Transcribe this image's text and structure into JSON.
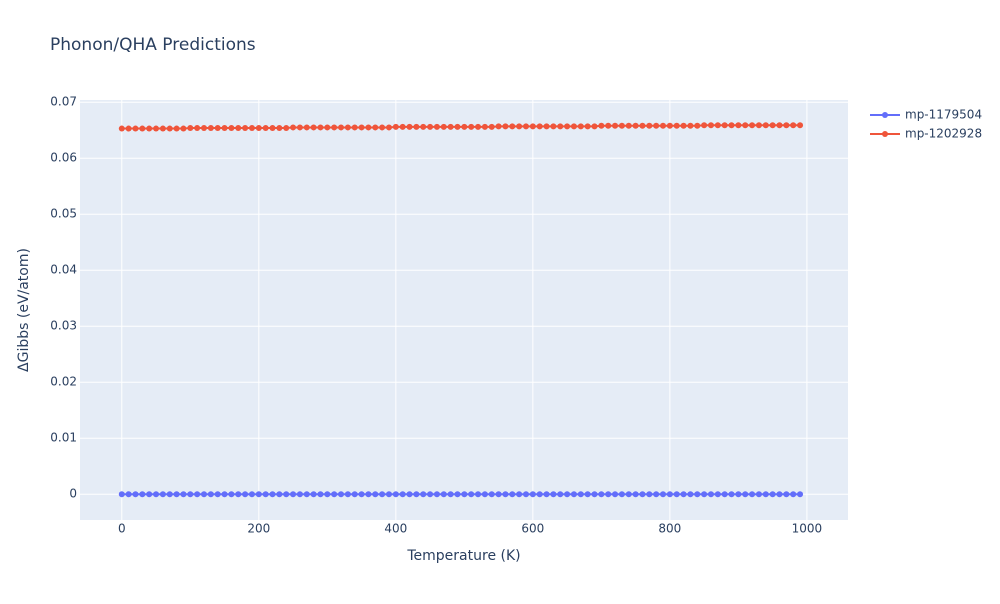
{
  "chart_data": {
    "type": "line",
    "title": "Phonon/QHA Predictions",
    "x_label": "Temperature (K)",
    "y_label": "ΔGibbs (eV/atom)",
    "x": [
      0,
      10,
      20,
      30,
      40,
      50,
      60,
      70,
      80,
      90,
      100,
      110,
      120,
      130,
      140,
      150,
      160,
      170,
      180,
      190,
      200,
      210,
      220,
      230,
      240,
      250,
      260,
      270,
      280,
      290,
      300,
      310,
      320,
      330,
      340,
      350,
      360,
      370,
      380,
      390,
      400,
      410,
      420,
      430,
      440,
      450,
      460,
      470,
      480,
      490,
      500,
      510,
      520,
      530,
      540,
      550,
      560,
      570,
      580,
      590,
      600,
      610,
      620,
      630,
      640,
      650,
      660,
      670,
      680,
      690,
      700,
      710,
      720,
      730,
      740,
      750,
      760,
      770,
      780,
      790,
      800,
      810,
      820,
      830,
      840,
      850,
      860,
      870,
      880,
      890,
      900,
      910,
      920,
      930,
      940,
      950,
      960,
      970,
      980,
      990
    ],
    "series": [
      {
        "name": "mp-1179504",
        "color": "#636efa",
        "values": [
          0,
          0,
          0,
          0,
          0,
          0,
          0,
          0,
          0,
          0,
          0,
          0,
          0,
          0,
          0,
          0,
          0,
          0,
          0,
          0,
          0,
          0,
          0,
          0,
          0,
          0,
          0,
          0,
          0,
          0,
          0,
          0,
          0,
          0,
          0,
          0,
          0,
          0,
          0,
          0,
          0,
          0,
          0,
          0,
          0,
          0,
          0,
          0,
          0,
          0,
          0,
          0,
          0,
          0,
          0,
          0,
          0,
          0,
          0,
          0,
          0,
          0,
          0,
          0,
          0,
          0,
          0,
          0,
          0,
          0,
          0,
          0,
          0,
          0,
          0,
          0,
          0,
          0,
          0,
          0,
          0,
          0,
          0,
          0,
          0,
          0,
          0,
          0,
          0,
          0,
          0,
          0,
          0,
          0,
          0,
          0,
          0,
          0,
          0,
          0
        ]
      },
      {
        "name": "mp-1202928",
        "color": "#ef553b",
        "values": [
          0.0653,
          0.0653,
          0.0653,
          0.0653,
          0.0653,
          0.0653,
          0.0653,
          0.0653,
          0.0653,
          0.0653,
          0.0654,
          0.0654,
          0.0654,
          0.0654,
          0.0654,
          0.0654,
          0.0654,
          0.0654,
          0.0654,
          0.0654,
          0.0654,
          0.0654,
          0.0654,
          0.0654,
          0.0654,
          0.0655,
          0.0655,
          0.0655,
          0.0655,
          0.0655,
          0.0655,
          0.0655,
          0.0655,
          0.0655,
          0.0655,
          0.0655,
          0.0655,
          0.0655,
          0.0655,
          0.0655,
          0.0656,
          0.0656,
          0.0656,
          0.0656,
          0.0656,
          0.0656,
          0.0656,
          0.0656,
          0.0656,
          0.0656,
          0.0656,
          0.0656,
          0.0656,
          0.0656,
          0.0656,
          0.0657,
          0.0657,
          0.0657,
          0.0657,
          0.0657,
          0.0657,
          0.0657,
          0.0657,
          0.0657,
          0.0657,
          0.0657,
          0.0657,
          0.0657,
          0.0657,
          0.0657,
          0.0658,
          0.0658,
          0.0658,
          0.0658,
          0.0658,
          0.0658,
          0.0658,
          0.0658,
          0.0658,
          0.0658,
          0.0658,
          0.0658,
          0.0658,
          0.0658,
          0.0658,
          0.0659,
          0.0659,
          0.0659,
          0.0659,
          0.0659,
          0.0659,
          0.0659,
          0.0659,
          0.0659,
          0.0659,
          0.0659,
          0.0659,
          0.0659,
          0.0659,
          0.0659
        ]
      }
    ],
    "xlim": [
      -61,
      1060
    ],
    "ylim": [
      -0.0046,
      0.0704
    ],
    "xticks": [
      0,
      200,
      400,
      600,
      800,
      1000
    ],
    "yticks": [
      0,
      0.01,
      0.02,
      0.03,
      0.04,
      0.05,
      0.06,
      0.07
    ],
    "grid": true,
    "legend": "top-right"
  }
}
